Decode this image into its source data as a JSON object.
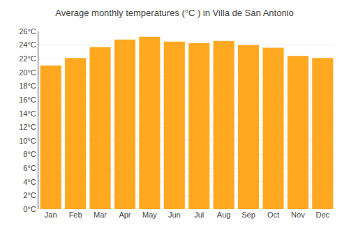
{
  "chart_data": {
    "type": "bar",
    "title": "Average monthly temperatures (°C ) in Villa de San Antonio",
    "categories": [
      "Jan",
      "Feb",
      "Mar",
      "Apr",
      "May",
      "Jun",
      "Jul",
      "Aug",
      "Sep",
      "Oct",
      "Nov",
      "Dec"
    ],
    "values": [
      21.0,
      22.1,
      23.7,
      24.8,
      25.2,
      24.5,
      24.3,
      24.6,
      24.0,
      23.6,
      22.4,
      22.1
    ],
    "color": "#FFA820",
    "ylim": [
      0,
      26
    ],
    "yticks": [
      {
        "value": 0,
        "label": "0°C"
      },
      {
        "value": 2,
        "label": "2°C"
      },
      {
        "value": 4,
        "label": "4°C"
      },
      {
        "value": 6,
        "label": "6°C"
      },
      {
        "value": 8,
        "label": "8°C"
      },
      {
        "value": 10,
        "label": "10°C"
      },
      {
        "value": 12,
        "label": "12°C"
      },
      {
        "value": 14,
        "label": "14°C"
      },
      {
        "value": 16,
        "label": "16°C"
      },
      {
        "value": 18,
        "label": "18°C"
      },
      {
        "value": 20,
        "label": "20°C"
      },
      {
        "value": 22,
        "label": "22°C"
      },
      {
        "value": 24,
        "label": "24°C"
      },
      {
        "value": 26,
        "label": "26°C"
      }
    ],
    "grid": true
  }
}
